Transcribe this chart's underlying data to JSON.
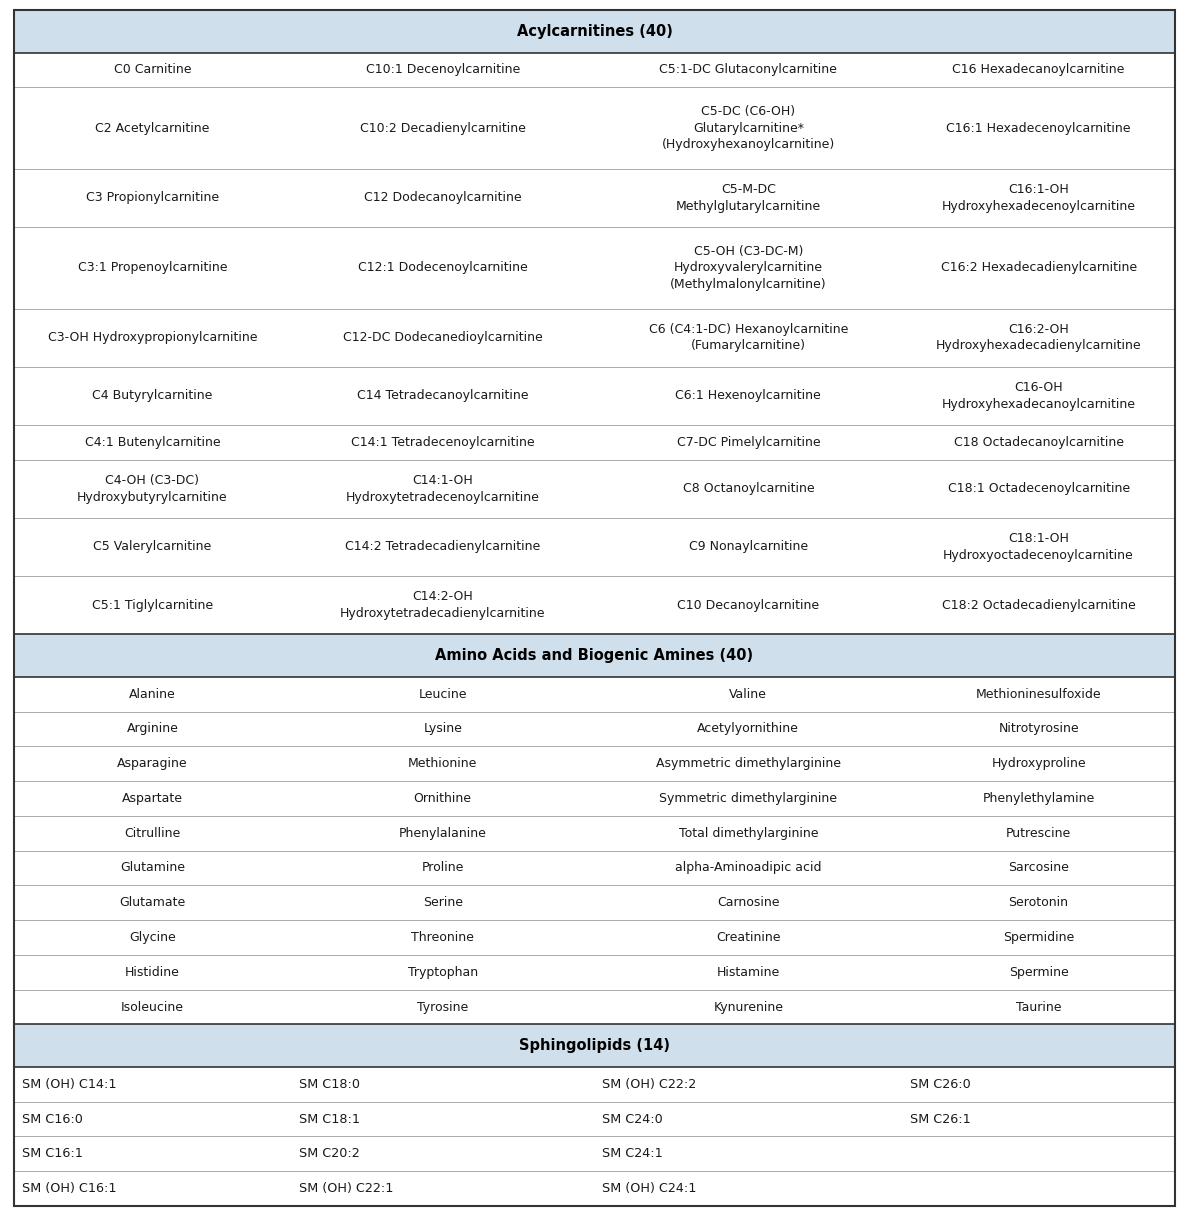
{
  "background_color": "#ffffff",
  "header_bg": "#cfe0ec",
  "header_text_color": "#000000",
  "cell_text_color": "#1a1a1a",
  "divider_color": "#aaaaaa",
  "border_color": "#333333",
  "header_border_color": "#555555",
  "figsize": [
    11.89,
    12.14
  ],
  "dpi": 100,
  "sections": [
    {
      "title": "Acylcarnitines (40)",
      "text_align": "center",
      "rows": [
        [
          "C0 Carnitine",
          "C10:1 Decenoylcarnitine",
          "C5:1-DC Glutaconylcarnitine",
          "C16 Hexadecanoylcarnitine"
        ],
        [
          "C2 Acetylcarnitine",
          "C10:2 Decadienylcarnitine",
          "C5-DC (C6-OH)\nGlutarylcarnitine*\n(Hydroxyhexanoylcarnitine)",
          "C16:1 Hexadecenoylcarnitine"
        ],
        [
          "C3 Propionylcarnitine",
          "C12 Dodecanoylcarnitine",
          "C5-M-DC\nMethylglutarylcarnitine",
          "C16:1-OH\nHydroxyhexadecenoylcarnitine"
        ],
        [
          "C3:1 Propenoylcarnitine",
          "C12:1 Dodecenoylcarnitine",
          "C5-OH (C3-DC-M)\nHydroxyvalerylcarnitine\n(Methylmalonylcarnitine)",
          "C16:2 Hexadecadienylcarnitine"
        ],
        [
          "C3-OH Hydroxypropionylcarnitine",
          "C12-DC Dodecanedioylcarnitine",
          "C6 (C4:1-DC) Hexanoylcarnitine\n(Fumarylcarnitine)",
          "C16:2-OH\nHydroxyhexadecadienylcarnitine"
        ],
        [
          "C4 Butyrylcarnitine",
          "C14 Tetradecanoylcarnitine",
          "C6:1 Hexenoylcarnitine",
          "C16-OH\nHydroxyhexadecanoylcarnitine"
        ],
        [
          "C4:1 Butenylcarnitine",
          "C14:1 Tetradecenoylcarnitine",
          "C7-DC Pimelylcarnitine",
          "C18 Octadecanoylcarnitine"
        ],
        [
          "C4-OH (C3-DC)\nHydroxybutyrylcarnitine",
          "C14:1-OH\nHydroxytetradecenoylcarnitine",
          "C8 Octanoylcarnitine",
          "C18:1 Octadecenoylcarnitine"
        ],
        [
          "C5 Valerylcarnitine",
          "C14:2 Tetradecadienylcarnitine",
          "C9 Nonaylcarnitine",
          "C18:1-OH\nHydroxyoctadecenoylcarnitine"
        ],
        [
          "C5:1 Tiglylcarnitine",
          "C14:2-OH\nHydroxytetradecadienylcarnitine",
          "C10 Decanoylcarnitine",
          "C18:2 Octadecadienylcarnitine"
        ]
      ]
    },
    {
      "title": "Amino Acids and Biogenic Amines (40)",
      "text_align": "center",
      "rows": [
        [
          "Alanine",
          "Leucine",
          "Valine",
          "Methioninesulfoxide"
        ],
        [
          "Arginine",
          "Lysine",
          "Acetylyornithine",
          "Nitrotyrosine"
        ],
        [
          "Asparagine",
          "Methionine",
          "Asymmetric dimethylarginine",
          "Hydroxyproline"
        ],
        [
          "Aspartate",
          "Ornithine",
          "Symmetric dimethylarginine",
          "Phenylethylamine"
        ],
        [
          "Citrulline",
          "Phenylalanine",
          "Total dimethylarginine",
          "Putrescine"
        ],
        [
          "Glutamine",
          "Proline",
          "alpha-Aminoadipic acid",
          "Sarcosine"
        ],
        [
          "Glutamate",
          "Serine",
          "Carnosine",
          "Serotonin"
        ],
        [
          "Glycine",
          "Threonine",
          "Creatinine",
          "Spermidine"
        ],
        [
          "Histidine",
          "Tryptophan",
          "Histamine",
          "Spermine"
        ],
        [
          "Isoleucine",
          "Tyrosine",
          "Kynurenine",
          "Taurine"
        ]
      ]
    },
    {
      "title": "Sphingolipids (14)",
      "text_align": "left",
      "rows": [
        [
          "SM (OH) C14:1",
          "SM C18:0",
          "SM (OH) C22:2",
          "SM C26:0"
        ],
        [
          "SM C16:0",
          "SM C18:1",
          "SM C24:0",
          "SM C26:1"
        ],
        [
          "SM C16:1",
          "SM C20:2",
          "SM C24:1",
          ""
        ],
        [
          "SM (OH) C16:1",
          "SM (OH) C22:1",
          "SM (OH) C24:1",
          ""
        ]
      ]
    }
  ]
}
